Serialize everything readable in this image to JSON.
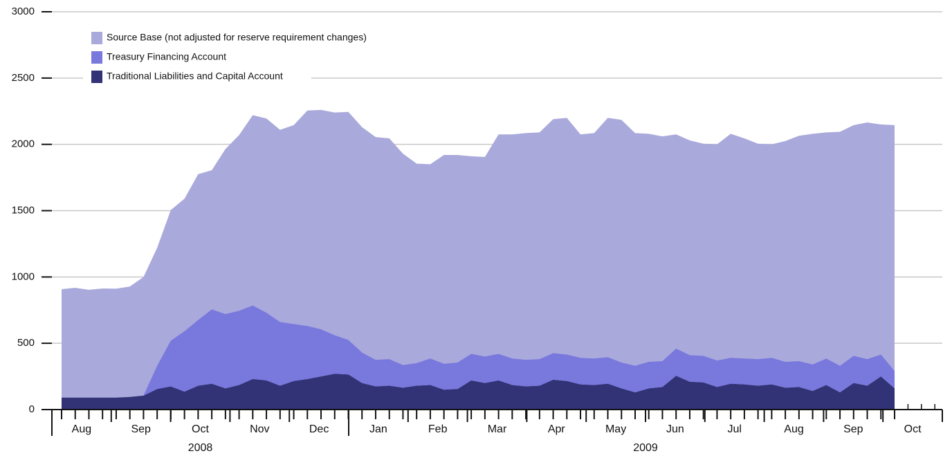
{
  "chart_data": {
    "type": "area",
    "categories": [
      null,
      null,
      null,
      null,
      null,
      null,
      null,
      null,
      null,
      null,
      null,
      null,
      null,
      null,
      null,
      null,
      null,
      null,
      null,
      null,
      null,
      null,
      null,
      null,
      null,
      null,
      null,
      null,
      null,
      null,
      null,
      null,
      null,
      null,
      null,
      null,
      null,
      null,
      null,
      null,
      null,
      null,
      null,
      null,
      null,
      null,
      null,
      null,
      null,
      null,
      null,
      null,
      null,
      null,
      null,
      null,
      null,
      null,
      null,
      null,
      null,
      null
    ],
    "months": [
      "Aug",
      "Sep",
      "Oct",
      "Nov",
      "Dec",
      "Jan",
      "Feb",
      "Mar",
      "Apr",
      "May",
      "Jun",
      "Jul",
      "Aug",
      "Sep",
      "Oct"
    ],
    "years": [
      "2008",
      "2009"
    ],
    "ylim": [
      0,
      3000
    ],
    "yticks": [
      0,
      500,
      1000,
      1500,
      2000,
      2500,
      3000
    ],
    "grid": true,
    "legend": "top-left",
    "series": [
      {
        "name": "Source Base (not adjusted for reserve requirement changes)",
        "color": "#aaa9db",
        "stacked": false,
        "values": [
          908,
          918,
          903,
          913,
          912,
          928,
          1000,
          1220,
          1505,
          1590,
          1775,
          1805,
          1965,
          2070,
          2220,
          2195,
          2110,
          2145,
          2255,
          2260,
          2240,
          2245,
          2130,
          2055,
          2045,
          1930,
          1855,
          1850,
          1920,
          1920,
          1910,
          1905,
          2075,
          2075,
          2085,
          2090,
          2190,
          2200,
          2075,
          2085,
          2200,
          2185,
          2085,
          2080,
          2060,
          2075,
          2030,
          2005,
          2000,
          2080,
          2045,
          2005,
          2000,
          2025,
          2065,
          2080,
          2090,
          2095,
          2145,
          2165,
          2150,
          2145
        ]
      },
      {
        "name": "Treasury Financing Account",
        "color": "#7878dd",
        "stacked": true,
        "values": [
          0,
          0,
          0,
          0,
          0,
          0,
          0,
          175,
          345,
          455,
          495,
          560,
          560,
          560,
          555,
          510,
          480,
          430,
          400,
          355,
          290,
          260,
          230,
          200,
          200,
          170,
          170,
          200,
          195,
          200,
          200,
          200,
          200,
          200,
          200,
          200,
          200,
          200,
          200,
          200,
          200,
          195,
          200,
          200,
          195,
          205,
          200,
          200,
          200,
          195,
          195,
          200,
          200,
          195,
          195,
          200,
          200,
          200,
          205,
          200,
          165,
          130
        ]
      },
      {
        "name": "Traditional Liabilities and Capital Account",
        "color": "#323276",
        "stacked": true,
        "values": [
          90,
          90,
          90,
          90,
          90,
          95,
          105,
          155,
          175,
          135,
          180,
          195,
          160,
          185,
          230,
          220,
          180,
          215,
          230,
          250,
          270,
          265,
          200,
          175,
          180,
          165,
          180,
          185,
          150,
          155,
          220,
          200,
          220,
          185,
          175,
          180,
          225,
          215,
          190,
          185,
          195,
          160,
          130,
          160,
          170,
          255,
          210,
          205,
          170,
          195,
          190,
          180,
          190,
          165,
          170,
          140,
          185,
          130,
          200,
          180,
          250,
          160
        ]
      }
    ]
  }
}
